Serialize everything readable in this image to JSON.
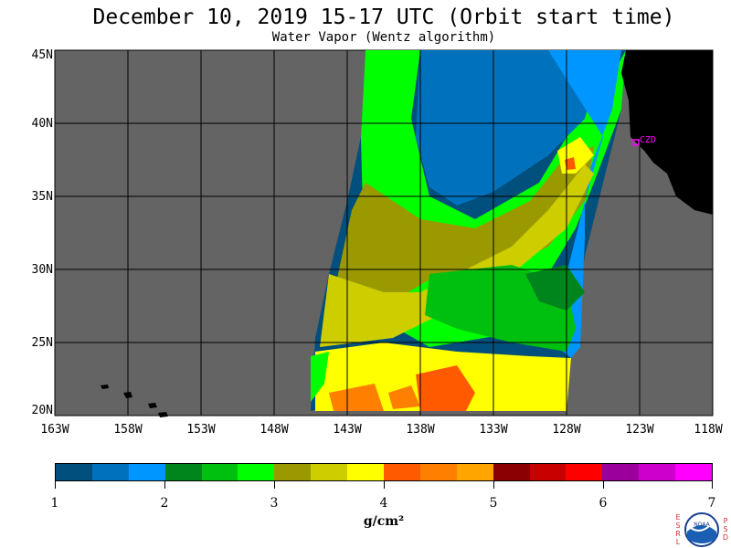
{
  "header": {
    "title": "December 10, 2019  15-17 UTC  (Orbit start time)",
    "subtitle": "Water Vapor (Wentz algorithm)"
  },
  "map": {
    "lat_labels": [
      "45N",
      "40N",
      "35N",
      "30N",
      "25N",
      "20N"
    ],
    "lon_labels": [
      "163W",
      "158W",
      "153W",
      "148W",
      "143W",
      "138W",
      "133W",
      "128W",
      "123W",
      "118W"
    ],
    "station_label": "CZD",
    "colors": {
      "no_data": "#646464",
      "land": "#000000",
      "gridline": "#000000",
      "station": "#ff00ff"
    }
  },
  "colorbar": {
    "colors": [
      "#004f7c",
      "#0072bd",
      "#0096ff",
      "#00841c",
      "#00c00f",
      "#00ff00",
      "#9a9a00",
      "#cdcd00",
      "#ffff00",
      "#ff5a00",
      "#ff7f00",
      "#ffa500",
      "#8b0000",
      "#c80000",
      "#ff0000",
      "#9c009c",
      "#cc00cc",
      "#ff00ff"
    ],
    "labels": [
      "1",
      "2",
      "3",
      "4",
      "5",
      "6",
      "7"
    ],
    "units": "g/cm²"
  },
  "logo": {
    "left_letters": "ESRL",
    "right_letters": "PSD",
    "center_text": "NOAA"
  }
}
